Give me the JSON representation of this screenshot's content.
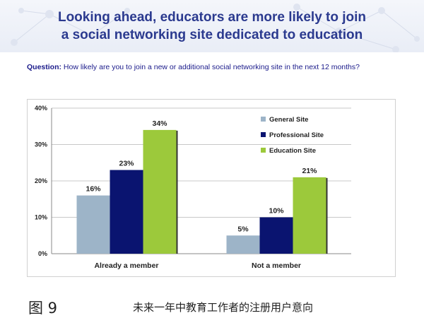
{
  "slide": {
    "title_line1": "Looking ahead, educators are more likely to join",
    "title_line2": "a social networking site dedicated to education",
    "question_label": "Question:",
    "question_text": "How likely are you to join a new or additional social networking site in the next 12 months?"
  },
  "caption": {
    "figure_number": "图 9",
    "figure_text": "未来一年中教育工作者的注册用户意向"
  },
  "chart_data": {
    "type": "bar",
    "categories": [
      "Already a member",
      "Not a member"
    ],
    "series": [
      {
        "name": "General Site",
        "values": [
          16,
          5
        ],
        "labels": [
          "16%",
          "5%"
        ],
        "color": "#9db4c8"
      },
      {
        "name": "Professional Site",
        "values": [
          23,
          10
        ],
        "labels": [
          "23%",
          "10%"
        ],
        "color": "#0a1470"
      },
      {
        "name": "Education Site",
        "values": [
          34,
          21
        ],
        "labels": [
          "34%",
          "21%"
        ],
        "color": "#9cc93b"
      }
    ],
    "ylim": [
      0,
      40
    ],
    "yticks": [
      0,
      10,
      20,
      30,
      40
    ],
    "ytick_labels": [
      "0%",
      "10%",
      "20%",
      "30%",
      "40%"
    ],
    "grid": true,
    "legend_position": "top-right"
  }
}
